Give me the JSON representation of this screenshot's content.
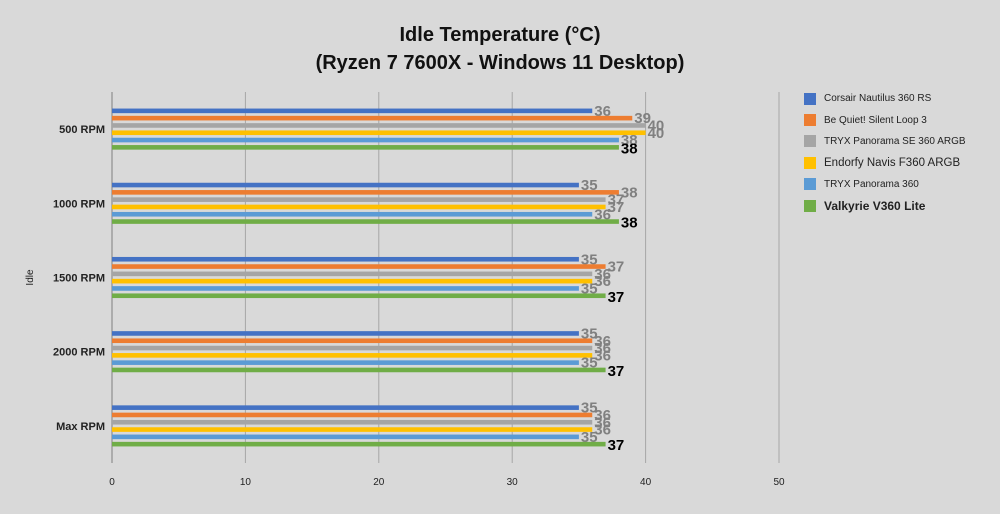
{
  "chart_data": {
    "type": "bar",
    "orientation": "horizontal",
    "title": "Idle Temperature (°C)",
    "subtitle": "(Ryzen 7 7600X - Windows 11 Desktop)",
    "group_axis_label": "Idle",
    "categories": [
      "500 RPM",
      "1000 RPM",
      "1500 RPM",
      "2000 RPM",
      "Max RPM"
    ],
    "xlim": [
      0,
      50
    ],
    "xticks": [
      0,
      10,
      20,
      30,
      40,
      50
    ],
    "grid": true,
    "legend_position": "right",
    "series": [
      {
        "name": "Corsair Nautilus 360 RS",
        "color": "#4472c4",
        "values": [
          36,
          35,
          35,
          35,
          35
        ],
        "label_color": "#808080",
        "label_bold": false
      },
      {
        "name": "Be Quiet! Silent Loop 3",
        "color": "#ed7d31",
        "values": [
          39,
          38,
          37,
          36,
          36
        ],
        "label_color": "#808080",
        "label_bold": false
      },
      {
        "name": "TRYX Panorama SE 360 ARGB",
        "color": "#a5a5a5",
        "values": [
          40,
          37,
          36,
          36,
          36
        ],
        "label_color": "#808080",
        "label_bold": false
      },
      {
        "name": "Endorfy Navis F360 ARGB",
        "color": "#ffc000",
        "values": [
          40,
          37,
          36,
          36,
          36
        ],
        "label_color": "#808080",
        "label_bold": false
      },
      {
        "name": "TRYX Panorama 360",
        "color": "#5b9bd5",
        "values": [
          38,
          36,
          35,
          35,
          35
        ],
        "label_color": "#808080",
        "label_bold": false
      },
      {
        "name": "Valkyrie V360 Lite",
        "color": "#70ad47",
        "values": [
          38,
          38,
          37,
          37,
          37
        ],
        "label_color": "#000000",
        "label_bold": true
      }
    ]
  }
}
